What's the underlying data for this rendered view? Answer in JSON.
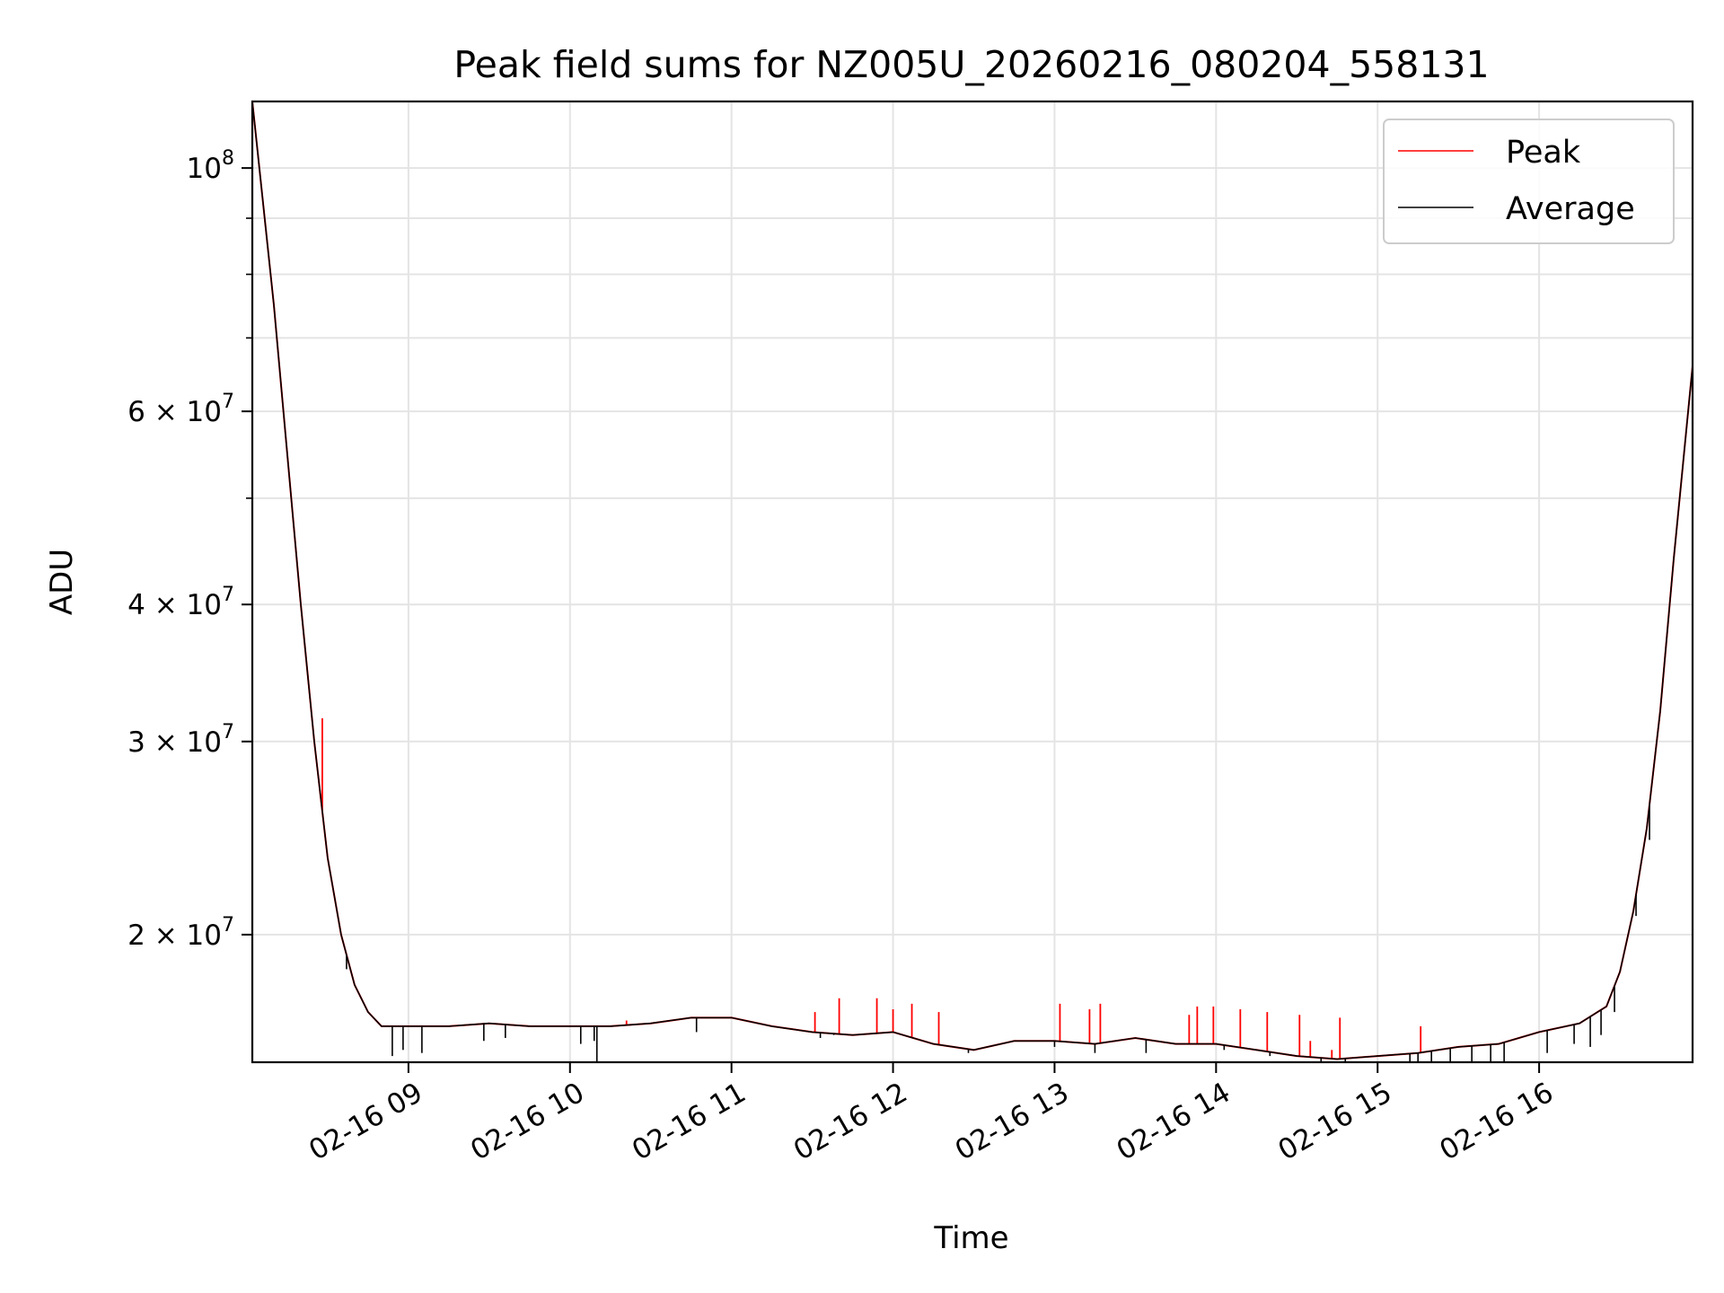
{
  "chart_data": {
    "type": "line",
    "title": "Peak field sums for NZ005U_20260216_080204_558131",
    "xlabel": "Time",
    "ylabel": "ADU",
    "yscale": "log",
    "xlim": [
      "02-16 08:02",
      "02-16 16:57"
    ],
    "ylim": [
      15300000,
      115000000
    ],
    "grid": true,
    "legend": "top-right",
    "x_ticks": [
      {
        "value": "02-16 09:00",
        "label": "02-16 09"
      },
      {
        "value": "02-16 10:00",
        "label": "02-16 10"
      },
      {
        "value": "02-16 11:00",
        "label": "02-16 11"
      },
      {
        "value": "02-16 12:00",
        "label": "02-16 12"
      },
      {
        "value": "02-16 13:00",
        "label": "02-16 13"
      },
      {
        "value": "02-16 14:00",
        "label": "02-16 14"
      },
      {
        "value": "02-16 15:00",
        "label": "02-16 15"
      },
      {
        "value": "02-16 16:00",
        "label": "02-16 16"
      }
    ],
    "y_ticks": [
      {
        "value": 100000000,
        "base": "10",
        "exp": "8"
      },
      {
        "value": 60000000,
        "base": "6 × 10",
        "exp": "7"
      },
      {
        "value": 40000000,
        "base": "4 × 10",
        "exp": "7"
      },
      {
        "value": 30000000,
        "base": "3 × 10",
        "exp": "7"
      },
      {
        "value": 20000000,
        "base": "2 × 10",
        "exp": "7"
      }
    ],
    "y_minor_ticks": [
      50000000,
      70000000,
      80000000,
      90000000
    ],
    "series": [
      {
        "name": "Peak",
        "color": "#ff0000",
        "x": [
          "02-16 08:02",
          "02-16 08:10",
          "02-16 08:20",
          "02-16 08:25",
          "02-16 08:30",
          "02-16 08:35",
          "02-16 08:40",
          "02-16 08:45",
          "02-16 08:50",
          "02-16 09:00",
          "02-16 09:15",
          "02-16 09:30",
          "02-16 09:45",
          "02-16 10:00",
          "02-16 10:15",
          "02-16 10:30",
          "02-16 10:45",
          "02-16 11:00",
          "02-16 11:15",
          "02-16 11:30",
          "02-16 11:45",
          "02-16 12:00",
          "02-16 12:15",
          "02-16 12:30",
          "02-16 12:45",
          "02-16 13:00",
          "02-16 13:15",
          "02-16 13:30",
          "02-16 13:45",
          "02-16 14:00",
          "02-16 14:15",
          "02-16 14:30",
          "02-16 14:45",
          "02-16 15:00",
          "02-16 15:15",
          "02-16 15:30",
          "02-16 15:45",
          "02-16 16:00",
          "02-16 16:15",
          "02-16 16:25",
          "02-16 16:30",
          "02-16 16:35",
          "02-16 16:40",
          "02-16 16:45",
          "02-16 16:50",
          "02-16 16:57"
        ],
        "y": [
          115000000,
          75000000,
          40000000,
          30000000,
          23500000,
          20000000,
          18000000,
          17000000,
          16500000,
          16500000,
          16500000,
          16600000,
          16500000,
          16500000,
          16500000,
          16600000,
          16800000,
          16800000,
          16500000,
          16300000,
          16200000,
          16300000,
          15900000,
          15700000,
          16000000,
          16000000,
          15900000,
          16100000,
          15900000,
          15900000,
          15700000,
          15500000,
          15400000,
          15500000,
          15600000,
          15800000,
          15900000,
          16300000,
          16600000,
          17200000,
          18500000,
          21000000,
          25000000,
          32000000,
          44000000,
          66000000
        ],
        "spikes": [
          {
            "x": "02-16 08:28",
            "y": 31500000
          },
          {
            "x": "02-16 10:21",
            "y": 16700000
          },
          {
            "x": "02-16 10:48",
            "y": 16800000
          },
          {
            "x": "02-16 11:31",
            "y": 17000000
          },
          {
            "x": "02-16 11:40",
            "y": 17500000
          },
          {
            "x": "02-16 11:54",
            "y": 17500000
          },
          {
            "x": "02-16 12:00",
            "y": 17100000
          },
          {
            "x": "02-16 12:07",
            "y": 17300000
          },
          {
            "x": "02-16 12:17",
            "y": 17000000
          },
          {
            "x": "02-16 13:02",
            "y": 17300000
          },
          {
            "x": "02-16 13:13",
            "y": 17100000
          },
          {
            "x": "02-16 13:17",
            "y": 17300000
          },
          {
            "x": "02-16 13:50",
            "y": 16900000
          },
          {
            "x": "02-16 13:53",
            "y": 17200000
          },
          {
            "x": "02-16 13:59",
            "y": 17200000
          },
          {
            "x": "02-16 14:09",
            "y": 17100000
          },
          {
            "x": "02-16 14:19",
            "y": 17000000
          },
          {
            "x": "02-16 14:31",
            "y": 16900000
          },
          {
            "x": "02-16 14:35",
            "y": 16000000
          },
          {
            "x": "02-16 14:43",
            "y": 15700000
          },
          {
            "x": "02-16 14:46",
            "y": 16800000
          },
          {
            "x": "02-16 15:16",
            "y": 16500000
          }
        ]
      },
      {
        "name": "Average",
        "color": "#000000",
        "x": [
          "02-16 08:02",
          "02-16 08:10",
          "02-16 08:20",
          "02-16 08:25",
          "02-16 08:30",
          "02-16 08:35",
          "02-16 08:40",
          "02-16 08:45",
          "02-16 08:50",
          "02-16 09:00",
          "02-16 09:15",
          "02-16 09:30",
          "02-16 09:45",
          "02-16 10:00",
          "02-16 10:15",
          "02-16 10:30",
          "02-16 10:45",
          "02-16 11:00",
          "02-16 11:15",
          "02-16 11:30",
          "02-16 11:45",
          "02-16 12:00",
          "02-16 12:15",
          "02-16 12:30",
          "02-16 12:45",
          "02-16 13:00",
          "02-16 13:15",
          "02-16 13:30",
          "02-16 13:45",
          "02-16 14:00",
          "02-16 14:15",
          "02-16 14:30",
          "02-16 14:45",
          "02-16 15:00",
          "02-16 15:15",
          "02-16 15:30",
          "02-16 15:45",
          "02-16 16:00",
          "02-16 16:15",
          "02-16 16:25",
          "02-16 16:30",
          "02-16 16:35",
          "02-16 16:40",
          "02-16 16:45",
          "02-16 16:50",
          "02-16 16:57"
        ],
        "y": [
          115000000,
          75000000,
          40000000,
          30000000,
          23500000,
          20000000,
          18000000,
          17000000,
          16500000,
          16500000,
          16500000,
          16600000,
          16500000,
          16500000,
          16500000,
          16600000,
          16800000,
          16800000,
          16500000,
          16300000,
          16200000,
          16300000,
          15900000,
          15700000,
          16000000,
          16000000,
          15900000,
          16100000,
          15900000,
          15900000,
          15700000,
          15500000,
          15400000,
          15500000,
          15600000,
          15800000,
          15900000,
          16300000,
          16600000,
          17200000,
          18500000,
          21000000,
          25000000,
          32000000,
          44000000,
          66000000
        ],
        "dips": [
          {
            "x": "02-16 08:37",
            "y": 18600000
          },
          {
            "x": "02-16 08:54",
            "y": 15500000
          },
          {
            "x": "02-16 08:58",
            "y": 15700000
          },
          {
            "x": "02-16 09:05",
            "y": 15600000
          },
          {
            "x": "02-16 09:28",
            "y": 16000000
          },
          {
            "x": "02-16 09:36",
            "y": 16100000
          },
          {
            "x": "02-16 10:04",
            "y": 15900000
          },
          {
            "x": "02-16 10:09",
            "y": 16000000
          },
          {
            "x": "02-16 10:10",
            "y": 15200000
          },
          {
            "x": "02-16 10:47",
            "y": 16300000
          },
          {
            "x": "02-16 11:33",
            "y": 16100000
          },
          {
            "x": "02-16 11:38",
            "y": 16200000
          },
          {
            "x": "02-16 12:28",
            "y": 15600000
          },
          {
            "x": "02-16 13:00",
            "y": 15800000
          },
          {
            "x": "02-16 13:15",
            "y": 15600000
          },
          {
            "x": "02-16 13:34",
            "y": 15600000
          },
          {
            "x": "02-16 14:03",
            "y": 15700000
          },
          {
            "x": "02-16 14:20",
            "y": 15500000
          },
          {
            "x": "02-16 14:39",
            "y": 14700000
          },
          {
            "x": "02-16 14:48",
            "y": 14800000
          },
          {
            "x": "02-16 15:12",
            "y": 14900000
          },
          {
            "x": "02-16 15:15",
            "y": 14600000
          },
          {
            "x": "02-16 15:20",
            "y": 14700000
          },
          {
            "x": "02-16 15:27",
            "y": 14600000
          },
          {
            "x": "02-16 15:35",
            "y": 14800000
          },
          {
            "x": "02-16 15:42",
            "y": 14900000
          },
          {
            "x": "02-16 15:47",
            "y": 15000000
          },
          {
            "x": "02-16 16:03",
            "y": 15600000
          },
          {
            "x": "02-16 16:13",
            "y": 15900000
          },
          {
            "x": "02-16 16:19",
            "y": 15800000
          },
          {
            "x": "02-16 16:23",
            "y": 16200000
          },
          {
            "x": "02-16 16:28",
            "y": 17000000
          },
          {
            "x": "02-16 16:36",
            "y": 20800000
          },
          {
            "x": "02-16 16:41",
            "y": 24400000
          }
        ]
      }
    ]
  }
}
